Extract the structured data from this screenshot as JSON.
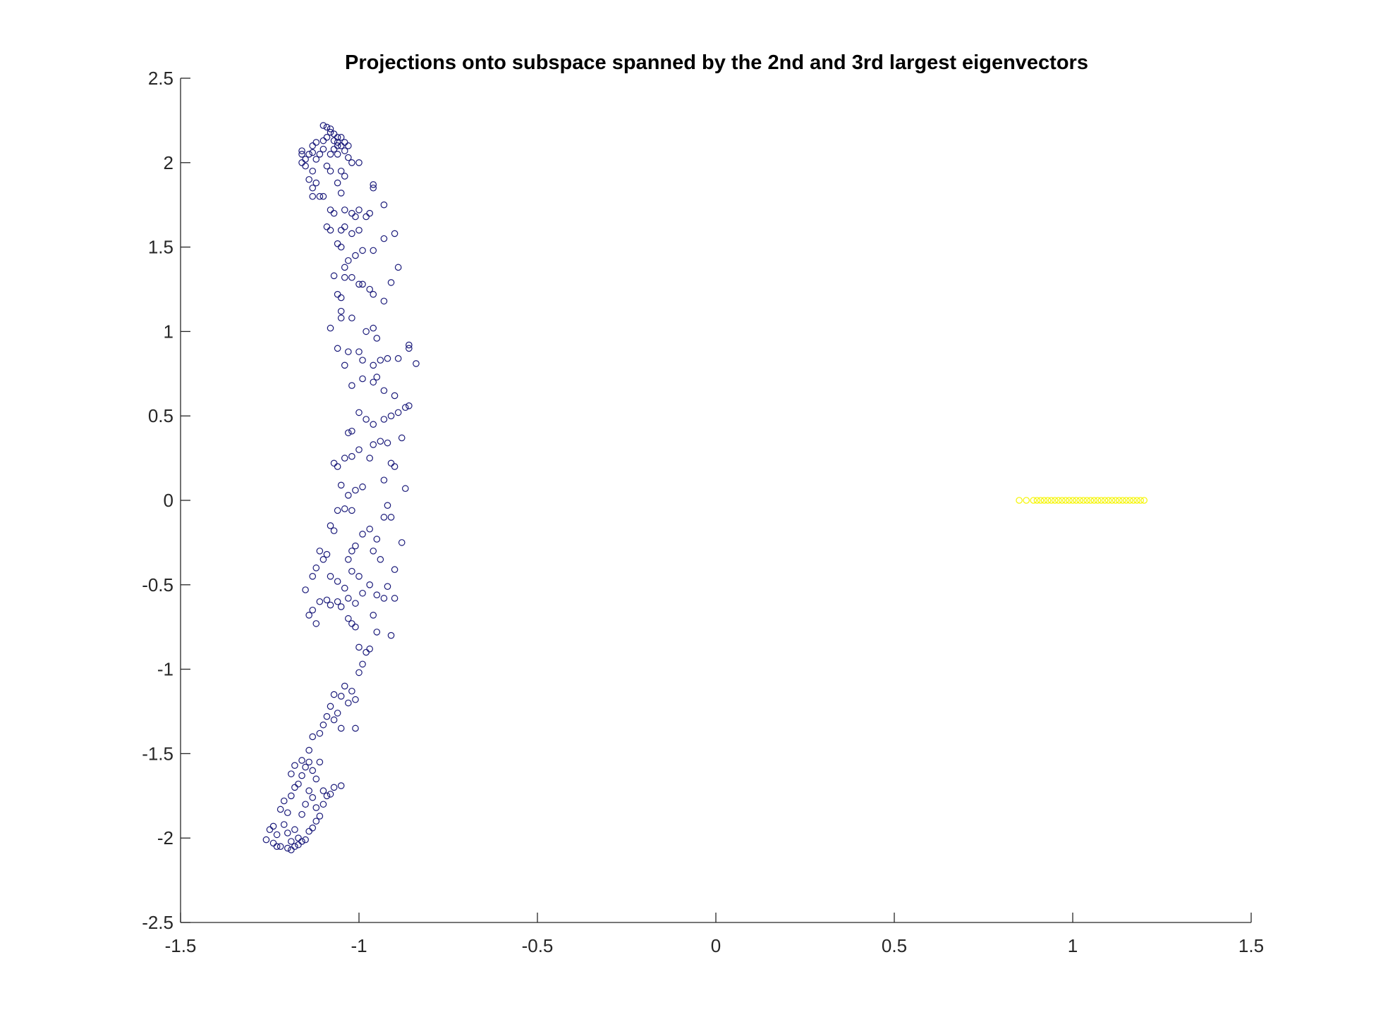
{
  "chart_data": {
    "type": "scatter",
    "title": "Projections onto subspace spanned by the 2nd and 3rd largest eigenvectors",
    "xlabel": "",
    "ylabel": "",
    "xlim": [
      -1.5,
      1.5
    ],
    "ylim": [
      -2.5,
      2.5
    ],
    "x_ticks": [
      -1.5,
      -1,
      -0.5,
      0,
      0.5,
      1,
      1.5
    ],
    "y_ticks": [
      -2.5,
      -2,
      -1.5,
      -1,
      -0.5,
      0,
      0.5,
      1,
      1.5,
      2,
      2.5
    ],
    "x_tick_labels": [
      "-1.5",
      "-1",
      "-0.5",
      "0",
      "0.5",
      "1",
      "1.5"
    ],
    "y_tick_labels": [
      "-2.5",
      "-2",
      "-1.5",
      "-1",
      "-0.5",
      "0",
      "0.5",
      "1",
      "1.5",
      "2",
      "2.5"
    ],
    "grid": false,
    "legend": "none",
    "marker": "circle-open",
    "series": [
      {
        "color": "#1a1a7a",
        "points": [
          [
            -1.26,
            -2.01
          ],
          [
            -1.25,
            -1.95
          ],
          [
            -1.24,
            -2.03
          ],
          [
            -1.23,
            -1.98
          ],
          [
            -1.22,
            -2.05
          ],
          [
            -1.21,
            -1.92
          ],
          [
            -1.24,
            -1.93
          ],
          [
            -1.22,
            -1.83
          ],
          [
            -1.2,
            -1.85
          ],
          [
            -1.21,
            -1.78
          ],
          [
            -1.19,
            -1.75
          ],
          [
            -1.18,
            -1.7
          ],
          [
            -1.17,
            -1.68
          ],
          [
            -1.19,
            -1.62
          ],
          [
            -1.16,
            -1.63
          ],
          [
            -1.18,
            -1.57
          ],
          [
            -1.15,
            -1.58
          ],
          [
            -1.16,
            -1.54
          ],
          [
            -1.14,
            -1.55
          ],
          [
            -1.19,
            -2.07
          ],
          [
            -1.18,
            -2.05
          ],
          [
            -1.17,
            -2.04
          ],
          [
            -1.16,
            -2.02
          ],
          [
            -1.15,
            -2.01
          ],
          [
            -1.17,
            -2.0
          ],
          [
            -1.19,
            -2.02
          ],
          [
            -1.2,
            -2.06
          ],
          [
            -1.14,
            -1.96
          ],
          [
            -1.13,
            -1.94
          ],
          [
            -1.12,
            -1.9
          ],
          [
            -1.11,
            -1.87
          ],
          [
            -1.12,
            -1.82
          ],
          [
            -1.13,
            -1.76
          ],
          [
            -1.14,
            -1.72
          ],
          [
            -1.15,
            -1.8
          ],
          [
            -1.16,
            -1.86
          ],
          [
            -1.18,
            -1.95
          ],
          [
            -1.2,
            -1.97
          ],
          [
            -1.23,
            -2.05
          ],
          [
            -1.1,
            -1.8
          ],
          [
            -1.09,
            -1.75
          ],
          [
            -1.08,
            -1.74
          ],
          [
            -1.07,
            -1.7
          ],
          [
            -1.05,
            -1.69
          ],
          [
            -1.1,
            -1.72
          ],
          [
            -1.12,
            -1.65
          ],
          [
            -1.13,
            -1.6
          ],
          [
            -1.11,
            -1.55
          ],
          [
            -1.14,
            -1.48
          ],
          [
            -1.13,
            -1.4
          ],
          [
            -1.11,
            -1.38
          ],
          [
            -1.1,
            -1.33
          ],
          [
            -1.09,
            -1.28
          ],
          [
            -1.07,
            -1.3
          ],
          [
            -1.06,
            -1.26
          ],
          [
            -1.08,
            -1.22
          ],
          [
            -1.05,
            -1.16
          ],
          [
            -1.04,
            -1.1
          ],
          [
            -1.02,
            -1.13
          ],
          [
            -1.01,
            -1.18
          ],
          [
            -1.03,
            -1.2
          ],
          [
            -1.07,
            -1.15
          ],
          [
            -1.05,
            -1.35
          ],
          [
            -1.01,
            -1.35
          ],
          [
            -1.0,
            -1.02
          ],
          [
            -0.99,
            -0.97
          ],
          [
            -0.98,
            -0.9
          ],
          [
            -0.97,
            -0.88
          ],
          [
            -1.0,
            -0.87
          ],
          [
            -1.01,
            -0.75
          ],
          [
            -1.02,
            -0.73
          ],
          [
            -1.03,
            -0.7
          ],
          [
            -1.05,
            -0.63
          ],
          [
            -1.06,
            -0.6
          ],
          [
            -1.08,
            -0.62
          ],
          [
            -1.09,
            -0.59
          ],
          [
            -1.11,
            -0.6
          ],
          [
            -1.13,
            -0.65
          ],
          [
            -1.12,
            -0.73
          ],
          [
            -1.14,
            -0.68
          ],
          [
            -1.15,
            -0.53
          ],
          [
            -1.13,
            -0.45
          ],
          [
            -1.12,
            -0.4
          ],
          [
            -1.1,
            -0.35
          ],
          [
            -1.09,
            -0.32
          ],
          [
            -1.11,
            -0.3
          ],
          [
            -1.08,
            -0.45
          ],
          [
            -1.06,
            -0.48
          ],
          [
            -1.04,
            -0.52
          ],
          [
            -1.03,
            -0.58
          ],
          [
            -1.01,
            -0.61
          ],
          [
            -0.99,
            -0.55
          ],
          [
            -0.97,
            -0.5
          ],
          [
            -0.95,
            -0.56
          ],
          [
            -0.93,
            -0.58
          ],
          [
            -0.92,
            -0.51
          ],
          [
            -0.9,
            -0.58
          ],
          [
            -0.91,
            -0.8
          ],
          [
            -0.95,
            -0.78
          ],
          [
            -0.96,
            -0.68
          ],
          [
            -1.0,
            -0.45
          ],
          [
            -1.02,
            -0.42
          ],
          [
            -1.03,
            -0.35
          ],
          [
            -1.02,
            -0.3
          ],
          [
            -1.01,
            -0.27
          ],
          [
            -0.99,
            -0.2
          ],
          [
            -0.97,
            -0.17
          ],
          [
            -0.95,
            -0.23
          ],
          [
            -0.93,
            -0.1
          ],
          [
            -0.92,
            -0.03
          ],
          [
            -0.91,
            -0.1
          ],
          [
            -0.9,
            -0.41
          ],
          [
            -0.88,
            -0.25
          ],
          [
            -0.94,
            -0.35
          ],
          [
            -0.96,
            -0.3
          ],
          [
            -1.07,
            -0.18
          ],
          [
            -1.08,
            -0.15
          ],
          [
            -1.06,
            -0.06
          ],
          [
            -1.04,
            -0.05
          ],
          [
            -1.02,
            -0.06
          ],
          [
            -1.03,
            0.03
          ],
          [
            -1.01,
            0.06
          ],
          [
            -0.99,
            0.08
          ],
          [
            -1.05,
            0.09
          ],
          [
            -1.06,
            0.2
          ],
          [
            -1.07,
            0.22
          ],
          [
            -1.04,
            0.25
          ],
          [
            -1.02,
            0.26
          ],
          [
            -1.0,
            0.3
          ],
          [
            -0.97,
            0.25
          ],
          [
            -0.96,
            0.33
          ],
          [
            -0.94,
            0.35
          ],
          [
            -0.92,
            0.34
          ],
          [
            -0.9,
            0.2
          ],
          [
            -0.93,
            0.12
          ],
          [
            -0.91,
            0.22
          ],
          [
            -0.87,
            0.07
          ],
          [
            -0.88,
            0.37
          ],
          [
            -1.03,
            0.4
          ],
          [
            -1.02,
            0.41
          ],
          [
            -1.0,
            0.52
          ],
          [
            -0.98,
            0.48
          ],
          [
            -0.96,
            0.45
          ],
          [
            -0.93,
            0.48
          ],
          [
            -0.91,
            0.5
          ],
          [
            -0.89,
            0.52
          ],
          [
            -0.87,
            0.55
          ],
          [
            -0.86,
            0.56
          ],
          [
            -0.9,
            0.62
          ],
          [
            -0.93,
            0.65
          ],
          [
            -0.96,
            0.7
          ],
          [
            -0.95,
            0.73
          ],
          [
            -0.99,
            0.72
          ],
          [
            -1.02,
            0.68
          ],
          [
            -0.99,
            0.83
          ],
          [
            -1.0,
            0.88
          ],
          [
            -0.96,
            0.8
          ],
          [
            -0.94,
            0.83
          ],
          [
            -0.92,
            0.84
          ],
          [
            -0.89,
            0.84
          ],
          [
            -0.86,
            0.9
          ],
          [
            -0.86,
            0.92
          ],
          [
            -0.84,
            0.81
          ],
          [
            -1.03,
            0.88
          ],
          [
            -1.04,
            0.8
          ],
          [
            -1.06,
            0.9
          ],
          [
            -1.08,
            1.02
          ],
          [
            -1.05,
            1.08
          ],
          [
            -1.05,
            1.12
          ],
          [
            -1.02,
            1.08
          ],
          [
            -0.98,
            1.0
          ],
          [
            -0.96,
            1.02
          ],
          [
            -0.95,
            0.96
          ],
          [
            -0.93,
            1.18
          ],
          [
            -0.96,
            1.22
          ],
          [
            -0.97,
            1.25
          ],
          [
            -0.99,
            1.28
          ],
          [
            -1.0,
            1.28
          ],
          [
            -1.02,
            1.32
          ],
          [
            -1.04,
            1.32
          ],
          [
            -1.07,
            1.33
          ],
          [
            -1.06,
            1.22
          ],
          [
            -1.05,
            1.2
          ],
          [
            -1.04,
            1.38
          ],
          [
            -1.03,
            1.42
          ],
          [
            -1.01,
            1.45
          ],
          [
            -0.99,
            1.48
          ],
          [
            -0.96,
            1.48
          ],
          [
            -0.93,
            1.55
          ],
          [
            -0.9,
            1.58
          ],
          [
            -0.89,
            1.38
          ],
          [
            -0.91,
            1.29
          ],
          [
            -1.02,
            1.58
          ],
          [
            -1.0,
            1.6
          ],
          [
            -1.04,
            1.62
          ],
          [
            -1.05,
            1.6
          ],
          [
            -1.08,
            1.6
          ],
          [
            -1.09,
            1.62
          ],
          [
            -1.06,
            1.52
          ],
          [
            -1.05,
            1.5
          ],
          [
            -1.02,
            1.7
          ],
          [
            -1.0,
            1.72
          ],
          [
            -0.98,
            1.68
          ],
          [
            -0.97,
            1.7
          ],
          [
            -0.93,
            1.75
          ],
          [
            -0.96,
            1.85
          ],
          [
            -0.96,
            1.87
          ],
          [
            -1.01,
            1.68
          ],
          [
            -1.04,
            1.72
          ],
          [
            -1.07,
            1.7
          ],
          [
            -1.08,
            1.72
          ],
          [
            -1.1,
            1.8
          ],
          [
            -1.11,
            1.8
          ],
          [
            -1.13,
            1.8
          ],
          [
            -1.13,
            1.85
          ],
          [
            -1.12,
            1.88
          ],
          [
            -1.14,
            1.9
          ],
          [
            -1.13,
            1.95
          ],
          [
            -1.15,
            1.98
          ],
          [
            -1.16,
            2.0
          ],
          [
            -1.16,
            2.05
          ],
          [
            -1.16,
            2.07
          ],
          [
            -1.14,
            2.05
          ],
          [
            -1.13,
            2.06
          ],
          [
            -1.13,
            2.1
          ],
          [
            -1.12,
            2.12
          ],
          [
            -1.1,
            2.13
          ],
          [
            -1.1,
            2.08
          ],
          [
            -1.08,
            2.05
          ],
          [
            -1.07,
            2.08
          ],
          [
            -1.06,
            2.05
          ],
          [
            -1.04,
            2.07
          ],
          [
            -1.03,
            2.03
          ],
          [
            -1.02,
            2.0
          ],
          [
            -1.0,
            2.0
          ],
          [
            -1.03,
            2.1
          ],
          [
            -1.05,
            2.1
          ],
          [
            -1.06,
            2.12
          ],
          [
            -1.04,
            2.12
          ],
          [
            -1.05,
            2.15
          ],
          [
            -1.06,
            2.15
          ],
          [
            -1.07,
            2.17
          ],
          [
            -1.08,
            2.2
          ],
          [
            -1.09,
            2.21
          ],
          [
            -1.1,
            2.22
          ],
          [
            -1.08,
            2.18
          ],
          [
            -1.07,
            2.13
          ],
          [
            -1.09,
            2.15
          ],
          [
            -1.06,
            2.1
          ],
          [
            -1.11,
            2.05
          ],
          [
            -1.05,
            1.95
          ],
          [
            -1.04,
            1.92
          ],
          [
            -1.06,
            1.88
          ],
          [
            -1.05,
            1.82
          ],
          [
            -1.08,
            1.95
          ],
          [
            -1.12,
            2.02
          ],
          [
            -1.15,
            2.02
          ],
          [
            -1.09,
            1.98
          ]
        ]
      },
      {
        "color": "#f5f500",
        "points": [
          [
            0.85,
            0.0
          ],
          [
            0.87,
            0.0
          ],
          [
            0.89,
            0.0
          ],
          [
            0.9,
            0.0
          ],
          [
            0.91,
            0.0
          ],
          [
            0.92,
            0.0
          ],
          [
            0.93,
            0.0
          ],
          [
            0.94,
            0.0
          ],
          [
            0.95,
            0.0
          ],
          [
            0.96,
            0.0
          ],
          [
            0.97,
            0.0
          ],
          [
            0.98,
            0.0
          ],
          [
            0.99,
            0.0
          ],
          [
            1.0,
            0.0
          ],
          [
            1.01,
            0.0
          ],
          [
            1.02,
            0.0
          ],
          [
            1.03,
            0.0
          ],
          [
            1.04,
            0.0
          ],
          [
            1.05,
            0.0
          ],
          [
            1.06,
            0.0
          ],
          [
            1.07,
            0.0
          ],
          [
            1.08,
            0.0
          ],
          [
            1.09,
            0.0
          ],
          [
            1.1,
            0.0
          ],
          [
            1.11,
            0.0
          ],
          [
            1.12,
            0.0
          ],
          [
            1.13,
            0.0
          ],
          [
            1.14,
            0.0
          ],
          [
            1.15,
            0.0
          ],
          [
            1.16,
            0.0
          ],
          [
            1.17,
            0.0
          ],
          [
            1.18,
            0.0
          ],
          [
            1.19,
            0.0
          ],
          [
            1.2,
            0.0
          ]
        ]
      }
    ]
  }
}
